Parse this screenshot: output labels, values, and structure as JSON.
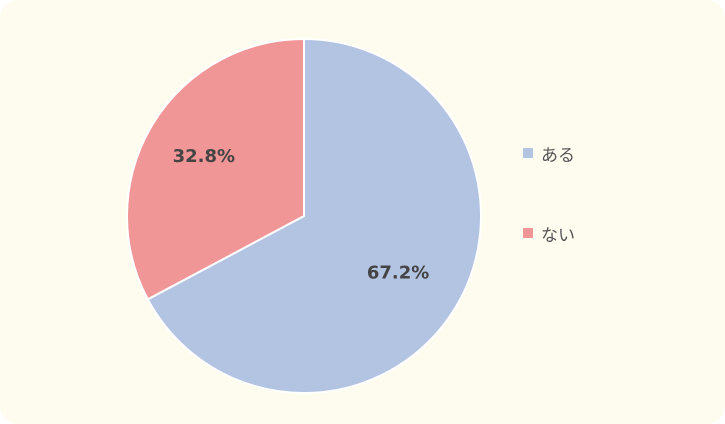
{
  "chart_data": {
    "type": "pie",
    "categories": [
      "ある",
      "ない"
    ],
    "values": [
      67.2,
      32.8
    ],
    "value_labels": [
      "67.2%",
      "32.8%"
    ],
    "colors": [
      "#b3c3e2",
      "#f09696"
    ],
    "start": "top, clockwise",
    "legend_position": "right"
  },
  "background_color": "#fefcef"
}
